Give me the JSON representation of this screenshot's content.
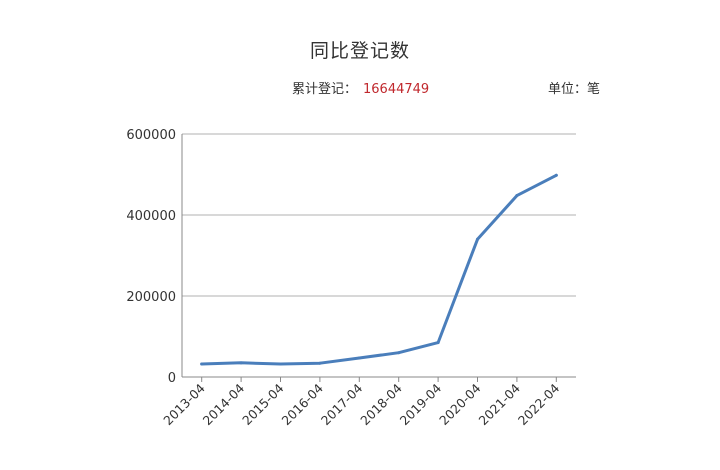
{
  "header": {
    "title": "同比登记数",
    "total_label": "累计登记：",
    "total_value": "16644749",
    "unit_label": "单位：笔"
  },
  "colors": {
    "line": "#4a7ebb",
    "grid": "#b0b0b0",
    "axis": "#888888",
    "total_value": "#c0282d"
  },
  "chart_data": {
    "type": "line",
    "title": "同比登记数",
    "xlabel": "",
    "ylabel": "",
    "categories": [
      "2013-04",
      "2014-04",
      "2015-04",
      "2016-04",
      "2017-04",
      "2018-04",
      "2019-04",
      "2020-04",
      "2021-04",
      "2022-04"
    ],
    "series": [
      {
        "values": [
          32000,
          35000,
          32000,
          34000,
          47000,
          60000,
          85000,
          340000,
          448000,
          498000
        ]
      }
    ],
    "ylim": [
      0,
      600000
    ],
    "yticks": [
      0,
      200000,
      400000,
      600000
    ],
    "grid": true,
    "legend": "none"
  }
}
